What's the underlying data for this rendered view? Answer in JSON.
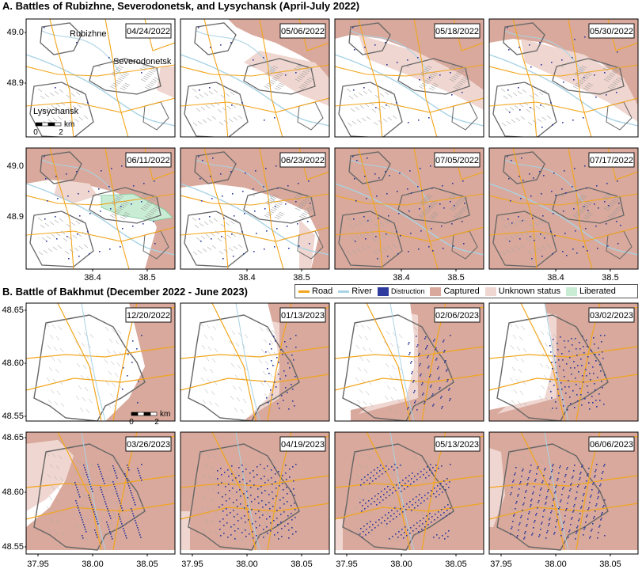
{
  "section_a": {
    "title": "A. Battles of Rubizhne, Severodonetsk, and Lysychansk (April-July 2022)",
    "dates": [
      "04/24/2022",
      "05/06/2022",
      "05/18/2022",
      "05/30/2022",
      "06/11/2022",
      "06/23/2022",
      "07/05/2022",
      "07/17/2022"
    ],
    "place_labels": [
      "Rubizhne",
      "Severodonetsk",
      "Lysychansk"
    ],
    "y_ticks": [
      "49.0",
      "48.9"
    ],
    "x_ticks": [
      "38.4",
      "38.5"
    ],
    "scale": {
      "start": "0",
      "end": "2",
      "unit": "km"
    }
  },
  "section_b": {
    "title": "B. Battle of Bakhmut (December 2022 - June 2023)",
    "dates": [
      "12/20/2022",
      "01/13/2023",
      "02/06/2023",
      "03/02/2023",
      "03/26/2023",
      "04/19/2023",
      "05/13/2023",
      "06/06/2023"
    ],
    "y_ticks": [
      "48.65",
      "48.60",
      "48.55"
    ],
    "x_ticks": [
      "37.95",
      "38.00",
      "38.05"
    ],
    "scale": {
      "start": "0",
      "end": "2",
      "unit": "km"
    }
  },
  "legend": [
    {
      "label": "Road",
      "kind": "line",
      "color": "#f2a51c"
    },
    {
      "label": "River",
      "kind": "line",
      "color": "#a9d3e5"
    },
    {
      "label": "Distruction",
      "kind": "box",
      "color": "#2e3a9e",
      "small": true
    },
    {
      "label": "Captured",
      "kind": "box",
      "color": "#d8a99c"
    },
    {
      "label": "Unknown status",
      "kind": "box",
      "color": "#f0d6d0"
    },
    {
      "label": "Liberated",
      "kind": "box",
      "color": "#c8ecd4"
    }
  ],
  "colors": {
    "captured": "#d8a99c",
    "unknown": "#f0d6d0",
    "liberated": "#c8ecd4",
    "road": "#f2a51c",
    "river": "#a9d3e5",
    "destruction": "#2e3a9e",
    "boundary": "#666666"
  }
}
